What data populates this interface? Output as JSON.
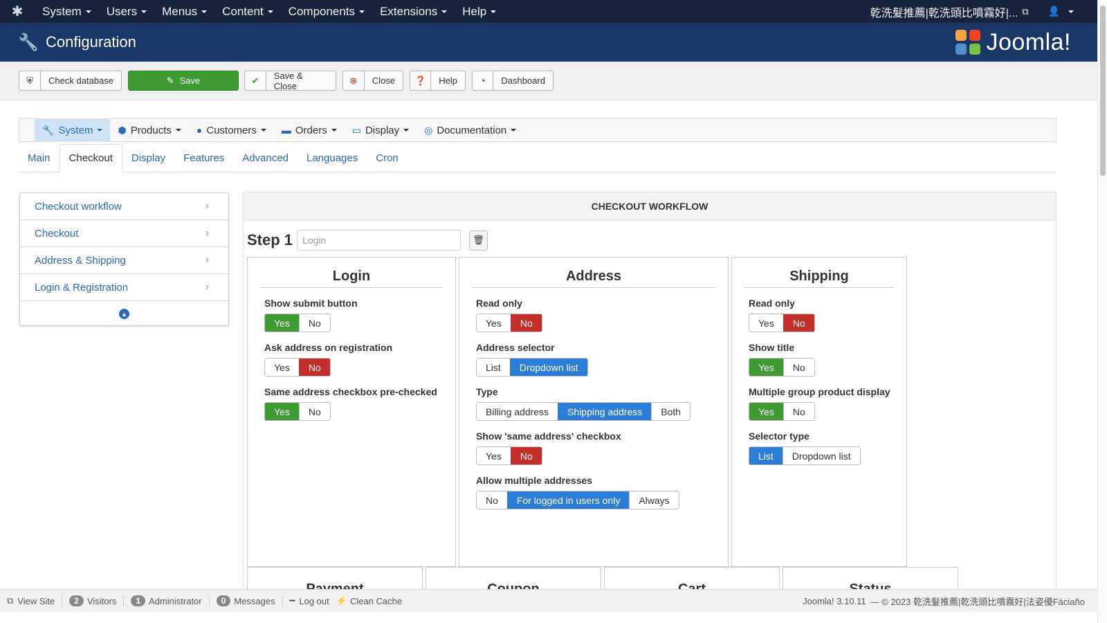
{
  "topbar": {
    "menu": [
      "System",
      "Users",
      "Menus",
      "Content",
      "Components",
      "Extensions",
      "Help"
    ],
    "site_name": "乾洗髮推薦|乾洗頭比噴霧好|...",
    "icons": {
      "logo": "joomla-icon",
      "external": "external-link-icon",
      "user": "user-icon"
    }
  },
  "header": {
    "title": "Configuration",
    "brand": "Joomla!"
  },
  "toolbar": {
    "check_database": "Check database",
    "save": "Save",
    "save_close": "Save & Close",
    "close": "Close",
    "help": "Help",
    "dashboard": "Dashboard"
  },
  "component_menu": [
    "System",
    "Products",
    "Customers",
    "Orders",
    "Display",
    "Documentation"
  ],
  "tabs": [
    "Main",
    "Checkout",
    "Display",
    "Features",
    "Advanced",
    "Languages",
    "Cron"
  ],
  "active_tab": "Checkout",
  "sidebar": {
    "items": [
      "Checkout workflow",
      "Checkout",
      "Address & Shipping",
      "Login & Registration"
    ]
  },
  "panel": {
    "heading": "CHECKOUT WORKFLOW",
    "step_title": "Step 1",
    "step_placeholder": "Login",
    "login": {
      "title": "Login",
      "fields": [
        {
          "label": "Show submit button",
          "options": [
            "Yes",
            "No"
          ],
          "selected": "Yes"
        },
        {
          "label": "Ask address on registration",
          "options": [
            "Yes",
            "No"
          ],
          "selected": "No"
        },
        {
          "label": "Same address checkbox pre-checked",
          "options": [
            "Yes",
            "No"
          ],
          "selected": "Yes"
        }
      ]
    },
    "address": {
      "title": "Address",
      "fields": [
        {
          "label": "Read only",
          "options": [
            "Yes",
            "No"
          ],
          "selected": "No"
        },
        {
          "label": "Address selector",
          "options": [
            "List",
            "Dropdown list"
          ],
          "selected": "Dropdown list"
        },
        {
          "label": "Type",
          "options": [
            "Billing address",
            "Shipping address",
            "Both"
          ],
          "selected": "Shipping address"
        },
        {
          "label": "Show 'same address' checkbox",
          "options": [
            "Yes",
            "No"
          ],
          "selected": "No"
        },
        {
          "label": "Allow multiple addresses",
          "options": [
            "No",
            "For logged in users only",
            "Always"
          ],
          "selected": "For logged in users only"
        }
      ]
    },
    "shipping": {
      "title": "Shipping",
      "fields": [
        {
          "label": "Read only",
          "options": [
            "Yes",
            "No"
          ],
          "selected": "No"
        },
        {
          "label": "Show title",
          "options": [
            "Yes",
            "No"
          ],
          "selected": "Yes"
        },
        {
          "label": "Multiple group product display",
          "options": [
            "Yes",
            "No"
          ],
          "selected": "Yes"
        },
        {
          "label": "Selector type",
          "options": [
            "List",
            "Dropdown list"
          ],
          "selected": "List"
        }
      ]
    },
    "lower_boxes": [
      "Payment",
      "Coupon",
      "Cart",
      "Status"
    ]
  },
  "footer": {
    "view_site": "View Site",
    "visitors_count": "2",
    "visitors": "Visitors",
    "admin_count": "1",
    "administrator": "Administrator",
    "messages_count": "0",
    "messages": "Messages",
    "logout": "Log out",
    "clean_cache": "Clean Cache",
    "version": "Joomla! 3.10.11",
    "copyright": "— © 2023 乾洗髮推薦|乾洗頭比噴霧好|法姿優Fáciaño"
  },
  "colors": {
    "topbar": "#17233d",
    "header": "#1a3867",
    "green": "#3d9b32",
    "red": "#c42f2a",
    "blue": "#2b7ed7",
    "link": "#2a69b8"
  }
}
